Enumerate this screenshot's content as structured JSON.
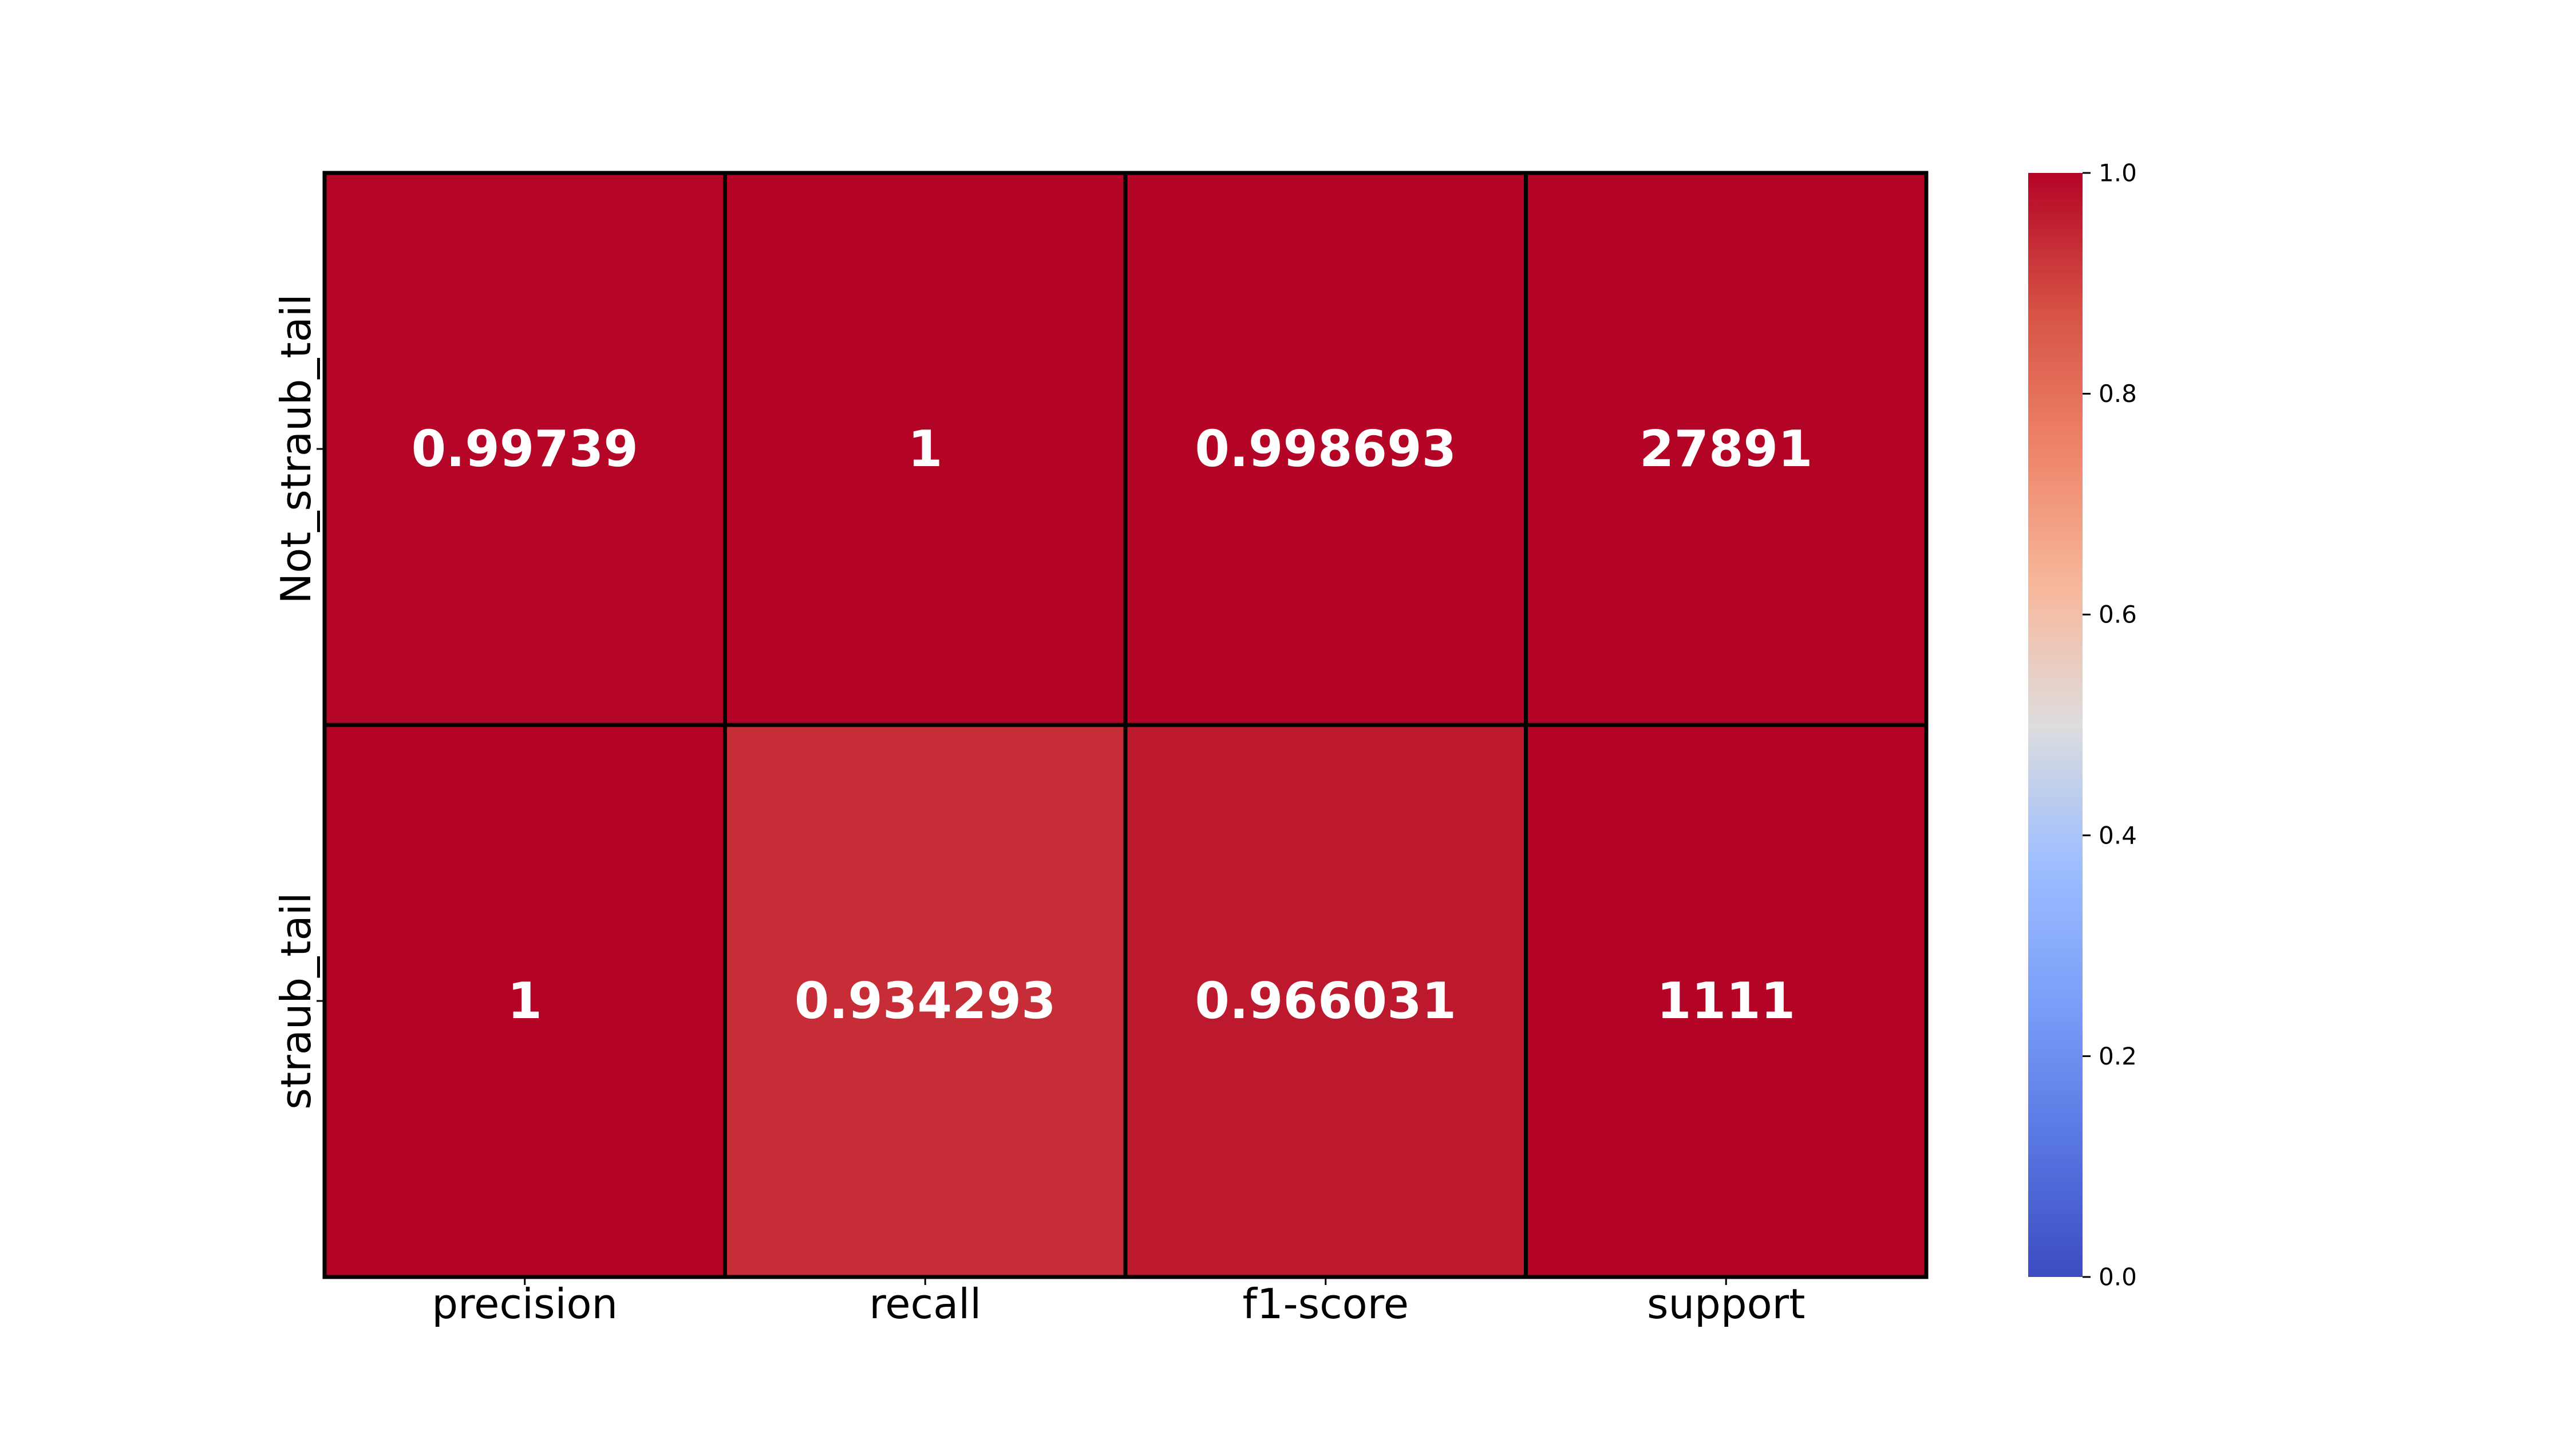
{
  "chart_data": {
    "type": "heatmap",
    "title": "",
    "xlabel": "",
    "ylabel": "",
    "x_categories": [
      "precision",
      "recall",
      "f1-score",
      "support"
    ],
    "y_categories": [
      "Not_straub_tail",
      "straub_tail"
    ],
    "values": [
      [
        0.99739,
        1,
        0.998693,
        27891
      ],
      [
        1,
        0.934293,
        0.966031,
        1111
      ]
    ],
    "annotations": [
      [
        "0.99739",
        "1",
        "0.998693",
        "27891"
      ],
      [
        "1",
        "0.934293",
        "0.966031",
        "1111"
      ]
    ],
    "colormap": "coolwarm",
    "vmin": 0.0,
    "vmax": 1.0,
    "colorbar_ticks": [
      0.0,
      0.2,
      0.4,
      0.6,
      0.8,
      1.0
    ],
    "colorbar_tick_labels": [
      "0.0",
      "0.2",
      "0.4",
      "0.6",
      "0.8",
      "1.0"
    ],
    "cell_border_color": "#000000",
    "annotation_color": "#ffffff",
    "colormap_stops": [
      {
        "t": 0.0,
        "color": "#3b4cc0"
      },
      {
        "t": 0.125,
        "color": "#5977e3"
      },
      {
        "t": 0.25,
        "color": "#7b9ff9"
      },
      {
        "t": 0.375,
        "color": "#9ebeff"
      },
      {
        "t": 0.5,
        "color": "#dddddd"
      },
      {
        "t": 0.625,
        "color": "#f7b89c"
      },
      {
        "t": 0.75,
        "color": "#ee8468"
      },
      {
        "t": 0.875,
        "color": "#d65244"
      },
      {
        "t": 1.0,
        "color": "#b40426"
      }
    ],
    "grid": false,
    "legend": "colorbar-right"
  }
}
